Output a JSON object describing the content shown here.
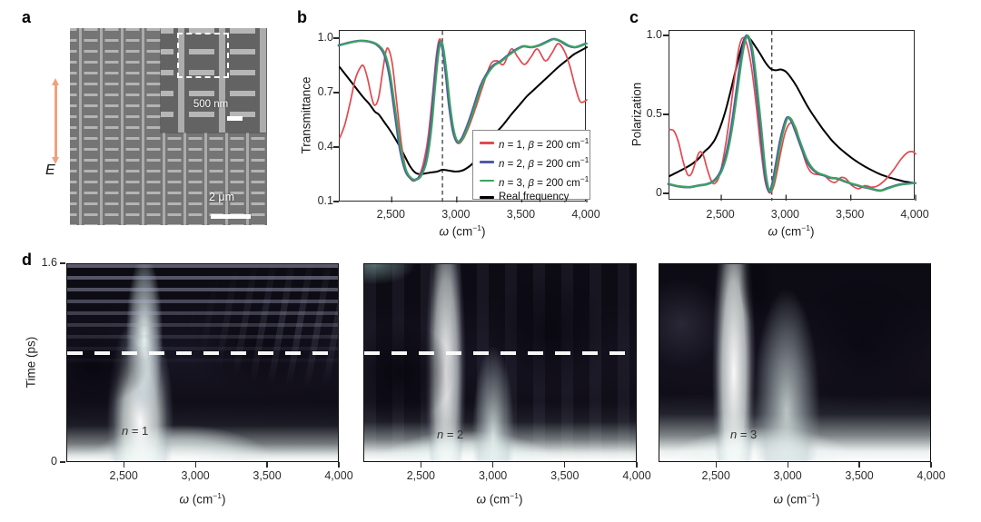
{
  "panel_a": {
    "label": "a",
    "field_label": "E",
    "arrow_color": "#efa27d",
    "inset_scale_text": "500 nm",
    "main_scale_text": "2 μm"
  },
  "panel_b": {
    "label": "b",
    "ylabel": "Transmittance",
    "xlabel": {
      "omega": "ω",
      "rest": " (cm",
      "sup": "−1",
      "close": ")"
    },
    "xticks": [
      {
        "v": 2500,
        "t": "2,500"
      },
      {
        "v": 3000,
        "t": "3,000"
      },
      {
        "v": 3500,
        "t": "3,500"
      },
      {
        "v": 4000,
        "t": "4,000"
      }
    ],
    "yticks": [
      {
        "v": 1.0,
        "t": "1.0"
      },
      {
        "v": 0.7,
        "t": "0.7"
      },
      {
        "v": 0.4,
        "t": "0.4"
      },
      {
        "v": 0.1,
        "t": "0.1"
      }
    ],
    "legend": {
      "rows": [
        {
          "var1": "n",
          "mid": " = 1, ",
          "var2": "β",
          "rest": " = 200 cm",
          "sup": "−1",
          "color": "#e1494f"
        },
        {
          "var1": "n",
          "mid": " = 2, ",
          "var2": "β",
          "rest": " = 200 cm",
          "sup": "−1",
          "color": "#5059a9"
        },
        {
          "var1": "n",
          "mid": " = 3, ",
          "var2": "β",
          "rest": " = 200 cm",
          "sup": "−1",
          "color": "#3aa55c"
        },
        {
          "text": "Real frequency",
          "color": "#000000"
        }
      ]
    }
  },
  "panel_c": {
    "label": "c",
    "ylabel": "Polarization",
    "xlabel": {
      "omega": "ω",
      "rest": " (cm",
      "sup": "−1",
      "close": ")"
    },
    "xticks": [
      {
        "v": 2500,
        "t": "2,500"
      },
      {
        "v": 3000,
        "t": "3,000"
      },
      {
        "v": 3500,
        "t": "3,500"
      },
      {
        "v": 4000,
        "t": "4,000"
      }
    ],
    "yticks": [
      {
        "v": 1.0,
        "t": "1.0"
      },
      {
        "v": 0.5,
        "t": "0.5"
      },
      {
        "v": 0,
        "t": "0"
      }
    ]
  },
  "panel_d": {
    "label": "d",
    "ylabel": "Time (ps)",
    "yticks": [
      {
        "v": 1.6,
        "t": "1.6"
      },
      {
        "v": 0,
        "t": "0"
      }
    ],
    "xticks": [
      {
        "v": 2500,
        "t": "2,500"
      },
      {
        "v": 3000,
        "t": "3,000"
      },
      {
        "v": 3500,
        "t": "3,500"
      },
      {
        "v": 4000,
        "t": "4,000"
      }
    ],
    "xlabel": {
      "omega": "ω",
      "rest": " (cm",
      "sup": "−1",
      "close": ")"
    },
    "maps": [
      {
        "n_var": "n",
        "n_rest": " = 1",
        "dashed": true
      },
      {
        "n_var": "n",
        "n_rest": " = 2",
        "dashed": true
      },
      {
        "n_var": "n",
        "n_rest": " = 3",
        "dashed": false
      }
    ]
  },
  "chart_data": [
    {
      "type": "line",
      "panel": "b",
      "title": "Transmittance spectra",
      "xlabel": "ω (cm⁻¹)",
      "ylabel": "Transmittance",
      "xlim": [
        2100,
        4000
      ],
      "ylim": [
        0.1,
        1.0
      ],
      "xticks": [
        2500,
        3000,
        3500,
        4000
      ],
      "yticks": [
        0.1,
        0.4,
        0.7,
        1.0
      ],
      "vline_omega": 2890,
      "grid": false,
      "legend_position": "lower right",
      "series": [
        {
          "name": "Real frequency",
          "color": "#000000",
          "width": 2.0,
          "x": [
            2100,
            2160,
            2220,
            2280,
            2330,
            2370,
            2400,
            2440,
            2480,
            2520,
            2560,
            2600,
            2640,
            2680,
            2720,
            2760,
            2800,
            2850,
            2890,
            2940,
            2990,
            3040,
            3090,
            3130,
            3170,
            3210,
            3260,
            3310,
            3360,
            3420,
            3480,
            3540,
            3600,
            3660,
            3720,
            3780,
            3840,
            3900,
            3950,
            4000
          ],
          "y": [
            0.845,
            0.79,
            0.735,
            0.68,
            0.64,
            0.6,
            0.585,
            0.545,
            0.505,
            0.46,
            0.41,
            0.355,
            0.3,
            0.265,
            0.255,
            0.26,
            0.265,
            0.27,
            0.28,
            0.275,
            0.27,
            0.275,
            0.295,
            0.32,
            0.355,
            0.395,
            0.445,
            0.49,
            0.53,
            0.585,
            0.635,
            0.685,
            0.725,
            0.765,
            0.805,
            0.845,
            0.88,
            0.915,
            0.935,
            0.955
          ]
        },
        {
          "name": "n = 1, β = 200 cm⁻¹",
          "color": "#e1494f",
          "width": 1.7,
          "x": [
            2100,
            2140,
            2180,
            2220,
            2260,
            2285,
            2315,
            2345,
            2370,
            2400,
            2430,
            2455,
            2475,
            2505,
            2540,
            2575,
            2610,
            2650,
            2680,
            2710,
            2745,
            2780,
            2815,
            2845,
            2870,
            2895,
            2920,
            2950,
            2980,
            3010,
            3050,
            3100,
            3150,
            3200,
            3260,
            3310,
            3360,
            3420,
            3470,
            3520,
            3570,
            3620,
            3680,
            3730,
            3780,
            3830,
            3870,
            3910,
            3950,
            4000
          ],
          "y": [
            0.455,
            0.53,
            0.65,
            0.78,
            0.845,
            0.85,
            0.78,
            0.68,
            0.635,
            0.68,
            0.82,
            0.93,
            0.945,
            0.86,
            0.64,
            0.42,
            0.28,
            0.225,
            0.22,
            0.245,
            0.32,
            0.46,
            0.7,
            0.92,
            1.0,
            0.93,
            0.77,
            0.58,
            0.465,
            0.425,
            0.45,
            0.53,
            0.63,
            0.74,
            0.86,
            0.88,
            0.86,
            0.945,
            0.9,
            0.86,
            0.9,
            0.945,
            0.88,
            0.92,
            0.975,
            0.93,
            0.85,
            0.74,
            0.655,
            0.665
          ]
        },
        {
          "name": "n = 2, β = 200 cm⁻¹",
          "color": "#5059a9",
          "width": 2.6,
          "x": [
            2092,
            2172,
            2252,
            2332,
            2392,
            2442,
            2482,
            2522,
            2562,
            2602,
            2642,
            2682,
            2722,
            2762,
            2797,
            2827,
            2852,
            2872,
            2892,
            2917,
            2942,
            2972,
            3002,
            3037,
            3082,
            3132,
            3182,
            3232,
            3282,
            3332,
            3392,
            3452,
            3512,
            3572,
            3632,
            3692,
            3742,
            3792,
            3852,
            3912,
            3992
          ],
          "y": [
            0.965,
            0.98,
            0.99,
            0.985,
            0.965,
            0.915,
            0.8,
            0.6,
            0.4,
            0.28,
            0.235,
            0.225,
            0.25,
            0.33,
            0.5,
            0.74,
            0.92,
            0.985,
            0.94,
            0.8,
            0.63,
            0.49,
            0.435,
            0.45,
            0.525,
            0.63,
            0.74,
            0.81,
            0.855,
            0.875,
            0.91,
            0.94,
            0.96,
            0.955,
            0.965,
            0.985,
            1.0,
            0.99,
            0.965,
            0.955,
            0.975
          ]
        },
        {
          "name": "n = 3, β = 200 cm⁻¹",
          "color": "#3aa55c",
          "width": 2.0,
          "x": [
            2100,
            2180,
            2260,
            2340,
            2400,
            2450,
            2490,
            2530,
            2570,
            2610,
            2650,
            2690,
            2730,
            2770,
            2805,
            2835,
            2860,
            2880,
            2900,
            2925,
            2950,
            2980,
            3010,
            3045,
            3090,
            3140,
            3190,
            3240,
            3290,
            3340,
            3400,
            3460,
            3520,
            3580,
            3640,
            3700,
            3750,
            3800,
            3860,
            3920,
            4000
          ],
          "y": [
            0.965,
            0.98,
            0.99,
            0.985,
            0.965,
            0.915,
            0.8,
            0.6,
            0.4,
            0.28,
            0.235,
            0.225,
            0.25,
            0.33,
            0.5,
            0.74,
            0.92,
            0.985,
            0.94,
            0.8,
            0.63,
            0.49,
            0.435,
            0.45,
            0.525,
            0.63,
            0.74,
            0.81,
            0.855,
            0.875,
            0.91,
            0.94,
            0.96,
            0.955,
            0.965,
            0.985,
            1.0,
            0.99,
            0.965,
            0.955,
            0.975
          ]
        }
      ]
    },
    {
      "type": "line",
      "panel": "c",
      "title": "Polarization spectra",
      "xlabel": "ω (cm⁻¹)",
      "ylabel": "Polarization",
      "xlim": [
        2100,
        4000
      ],
      "ylim": [
        0,
        1.0
      ],
      "xticks": [
        2500,
        3000,
        3500,
        4000
      ],
      "yticks": [
        0,
        0.5,
        1.0
      ],
      "vline_omega": 2890,
      "grid": false,
      "series": [
        {
          "name": "Real frequency",
          "color": "#000000",
          "width": 2.0,
          "x": [
            2100,
            2160,
            2220,
            2280,
            2330,
            2370,
            2410,
            2450,
            2490,
            2530,
            2570,
            2610,
            2650,
            2685,
            2720,
            2760,
            2800,
            2840,
            2880,
            2920,
            2960,
            3000,
            3040,
            3080,
            3120,
            3160,
            3210,
            3260,
            3310,
            3360,
            3410,
            3460,
            3510,
            3560,
            3610,
            3660,
            3710,
            3760,
            3810,
            3860,
            3910,
            3960,
            4000
          ],
          "y": [
            0.115,
            0.14,
            0.165,
            0.195,
            0.23,
            0.27,
            0.3,
            0.345,
            0.42,
            0.52,
            0.645,
            0.78,
            0.91,
            0.995,
            0.985,
            0.94,
            0.89,
            0.835,
            0.795,
            0.785,
            0.79,
            0.775,
            0.735,
            0.685,
            0.625,
            0.565,
            0.5,
            0.44,
            0.385,
            0.335,
            0.295,
            0.26,
            0.228,
            0.2,
            0.175,
            0.153,
            0.133,
            0.117,
            0.103,
            0.092,
            0.082,
            0.075,
            0.07
          ]
        },
        {
          "name": "n = 1, β = 200 cm⁻¹",
          "color": "#e1494f",
          "width": 1.7,
          "x": [
            2100,
            2135,
            2170,
            2205,
            2240,
            2270,
            2300,
            2330,
            2360,
            2395,
            2430,
            2460,
            2490,
            2525,
            2560,
            2600,
            2635,
            2665,
            2695,
            2730,
            2765,
            2800,
            2835,
            2860,
            2880,
            2905,
            2930,
            2960,
            2990,
            3020,
            3050,
            3080,
            3120,
            3160,
            3200,
            3250,
            3300,
            3340,
            3380,
            3420,
            3460,
            3510,
            3560,
            3610,
            3660,
            3710,
            3770,
            3830,
            3890,
            3940,
            3975,
            4000
          ],
          "y": [
            0.41,
            0.4,
            0.33,
            0.21,
            0.125,
            0.13,
            0.2,
            0.265,
            0.25,
            0.15,
            0.075,
            0.075,
            0.13,
            0.27,
            0.46,
            0.72,
            0.92,
            0.99,
            0.955,
            0.82,
            0.6,
            0.33,
            0.1,
            0.025,
            0.01,
            0.05,
            0.14,
            0.27,
            0.38,
            0.44,
            0.45,
            0.41,
            0.29,
            0.185,
            0.135,
            0.125,
            0.115,
            0.085,
            0.075,
            0.105,
            0.1,
            0.055,
            0.035,
            0.055,
            0.045,
            0.055,
            0.095,
            0.155,
            0.225,
            0.265,
            0.27,
            0.255
          ]
        },
        {
          "name": "n = 2, β = 200 cm⁻¹",
          "color": "#5059a9",
          "width": 2.6,
          "x": [
            2092,
            2172,
            2252,
            2322,
            2392,
            2442,
            2492,
            2537,
            2577,
            2617,
            2652,
            2682,
            2707,
            2737,
            2767,
            2802,
            2837,
            2867,
            2892,
            2922,
            2952,
            2982,
            3007,
            3037,
            3072,
            3112,
            3152,
            3197,
            3242,
            3292,
            3342,
            3392,
            3442,
            3492,
            3542,
            3592,
            3642,
            3692,
            3732,
            3782,
            3832,
            3882,
            3942,
            3992
          ],
          "y": [
            0.065,
            0.05,
            0.045,
            0.055,
            0.065,
            0.085,
            0.14,
            0.25,
            0.42,
            0.65,
            0.86,
            0.985,
            0.995,
            0.9,
            0.7,
            0.42,
            0.13,
            0.02,
            0.06,
            0.19,
            0.33,
            0.43,
            0.485,
            0.47,
            0.4,
            0.31,
            0.225,
            0.165,
            0.135,
            0.12,
            0.105,
            0.1,
            0.085,
            0.07,
            0.058,
            0.047,
            0.038,
            0.028,
            0.024,
            0.038,
            0.052,
            0.062,
            0.068,
            0.072
          ]
        },
        {
          "name": "n = 3, β = 200 cm⁻¹",
          "color": "#3aa55c",
          "width": 2.0,
          "x": [
            2100,
            2180,
            2260,
            2330,
            2400,
            2450,
            2500,
            2545,
            2585,
            2625,
            2660,
            2690,
            2715,
            2745,
            2775,
            2810,
            2845,
            2875,
            2900,
            2930,
            2960,
            2990,
            3015,
            3045,
            3080,
            3120,
            3160,
            3205,
            3250,
            3300,
            3350,
            3400,
            3450,
            3500,
            3550,
            3600,
            3650,
            3700,
            3740,
            3790,
            3840,
            3890,
            3950,
            4000
          ],
          "y": [
            0.065,
            0.05,
            0.045,
            0.055,
            0.065,
            0.085,
            0.14,
            0.25,
            0.42,
            0.65,
            0.86,
            0.985,
            0.995,
            0.9,
            0.7,
            0.42,
            0.13,
            0.02,
            0.06,
            0.19,
            0.33,
            0.43,
            0.485,
            0.47,
            0.4,
            0.31,
            0.225,
            0.165,
            0.135,
            0.12,
            0.105,
            0.1,
            0.085,
            0.07,
            0.058,
            0.047,
            0.038,
            0.028,
            0.024,
            0.038,
            0.052,
            0.062,
            0.068,
            0.072
          ]
        }
      ]
    },
    {
      "type": "heatmap",
      "panel": "d",
      "title": "Time–frequency maps",
      "xlabel": "ω (cm⁻¹)",
      "ylabel": "Time (ps)",
      "xlim": [
        2100,
        4000
      ],
      "ylim": [
        0,
        1.6
      ],
      "xticks": [
        2500,
        3000,
        3500,
        4000
      ],
      "yticks": [
        0,
        1.6
      ],
      "colormap": "dark navy-purple to white",
      "panels": [
        {
          "label": "n = 1",
          "has_dashed_line": true,
          "dashed_line_time_ps": 0.9,
          "bright_ridge_omega": 2650,
          "features": "bottom bright band, vertical ridge, horizontal interference fringes in upper half"
        },
        {
          "label": "n = 2",
          "has_dashed_line": true,
          "dashed_line_time_ps": 0.9,
          "bright_ridge_omega": 2700,
          "features": "bottom bright band, main vertical ridge, fainter secondary ridge near 3,050"
        },
        {
          "label": "n = 3",
          "has_dashed_line": false,
          "bright_ridge_omega": 2680,
          "features": "smooth bottom bright band, main vertical ridge, broad secondary bright region near 3,050"
        }
      ]
    }
  ]
}
